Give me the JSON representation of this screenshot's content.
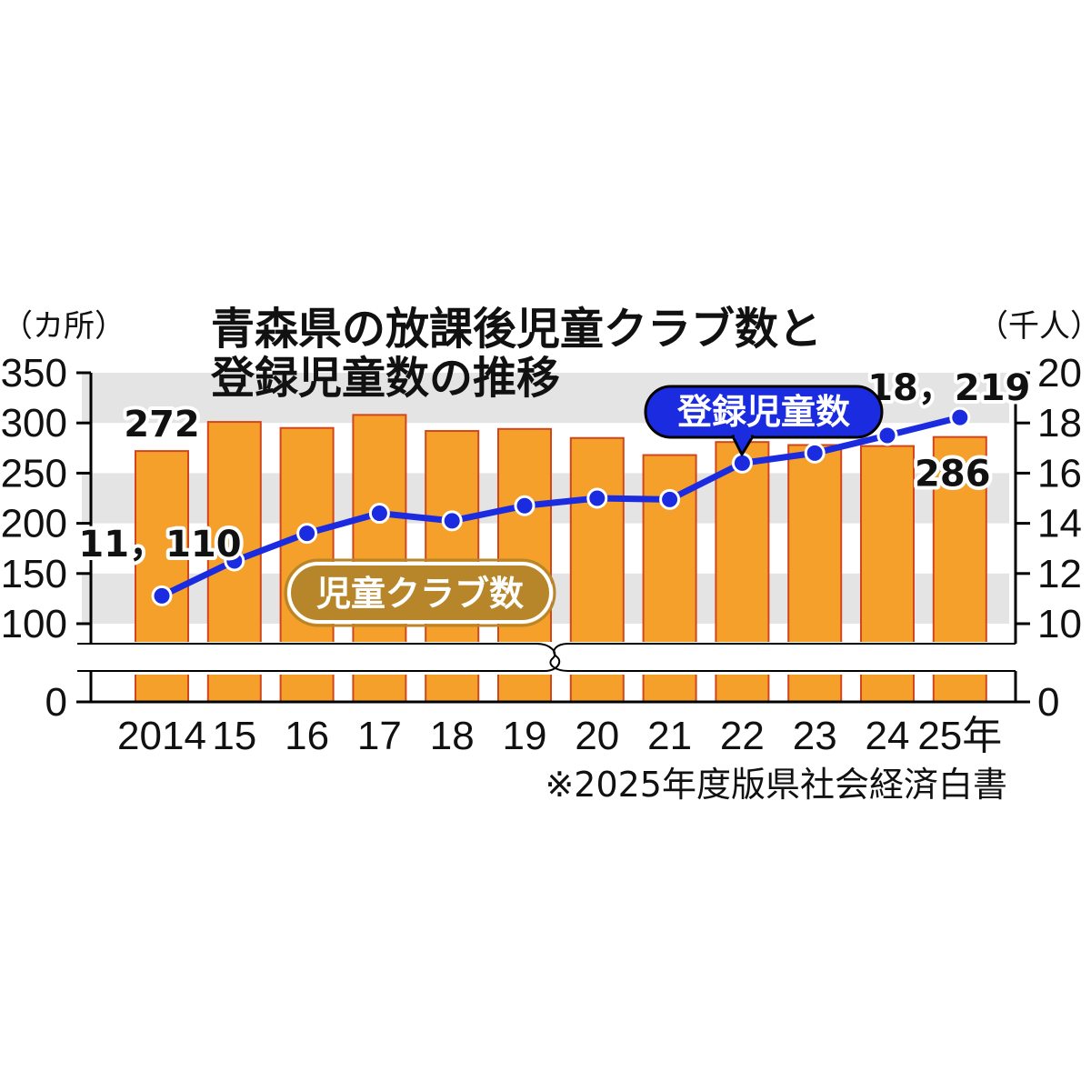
{
  "chart_data": {
    "type": "bar+line",
    "title_line1": "青森県の放課後児童クラブ数と",
    "title_line2": "登録児童数の推移",
    "left_unit": "（カ所）",
    "right_unit": "（千人）",
    "categories": [
      "2014",
      "15",
      "16",
      "17",
      "18",
      "19",
      "20",
      "21",
      "22",
      "23",
      "24",
      "25年"
    ],
    "y_left_ticks": [
      "350",
      "300",
      "250",
      "200",
      "150",
      "100",
      "0"
    ],
    "y_right_ticks": [
      "20",
      "18",
      "16",
      "14",
      "12",
      "10",
      "0"
    ],
    "y_left_range": [
      100,
      350
    ],
    "y_right_range": [
      10,
      20
    ],
    "axis_break": true,
    "grid": "alternating horizontal bands",
    "series": [
      {
        "name": "児童クラブ数",
        "type": "bar",
        "axis": "left",
        "color": "#F5A02A",
        "values": [
          272,
          301,
          295,
          308,
          292,
          294,
          285,
          268,
          281,
          278,
          277,
          286
        ]
      },
      {
        "name": "登録児童数",
        "type": "line",
        "axis": "right",
        "color": "#1A2BE0",
        "values": [
          11.11,
          12.5,
          13.6,
          14.4,
          14.1,
          14.7,
          15.0,
          14.95,
          16.4,
          16.8,
          17.5,
          18.219
        ]
      }
    ],
    "annotations": {
      "bar_first": "272",
      "bar_last": "286",
      "line_first": "11，110",
      "line_last": "18，219"
    },
    "source": "※2025年度版県社会経済白書"
  }
}
